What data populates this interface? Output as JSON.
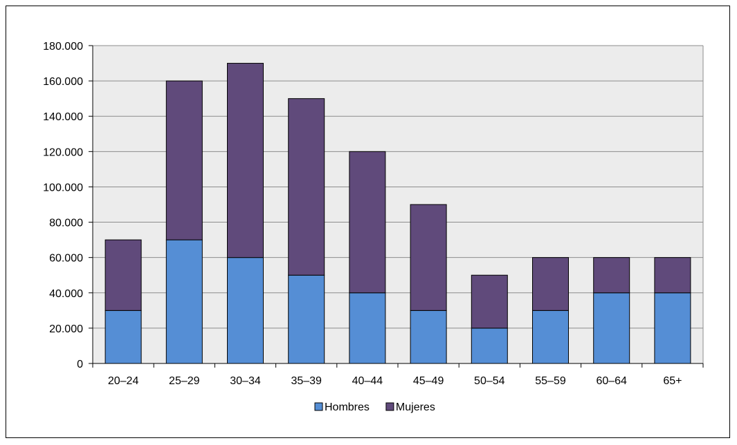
{
  "chart_data": {
    "type": "bar",
    "stacked": true,
    "categories": [
      "20–24",
      "25–29",
      "30–34",
      "35–39",
      "40–44",
      "45–49",
      "50–54",
      "55–59",
      "60–64",
      "65+"
    ],
    "series": [
      {
        "name": "Hombres",
        "color": "#558ed5",
        "values": [
          30000,
          70000,
          60000,
          50000,
          40000,
          30000,
          20000,
          30000,
          40000,
          40000
        ]
      },
      {
        "name": "Mujeres",
        "color": "#604a7b",
        "values": [
          40000,
          90000,
          110000,
          100000,
          80000,
          60000,
          30000,
          30000,
          20000,
          20000
        ]
      }
    ],
    "ylim": [
      0,
      180000
    ],
    "yticks": [
      0,
      20000,
      40000,
      60000,
      80000,
      100000,
      120000,
      140000,
      160000,
      180000
    ],
    "ytick_labels": [
      "0",
      "20.000",
      "40.000",
      "60.000",
      "80.000",
      "100.000",
      "120.000",
      "140.000",
      "160.000",
      "180.000"
    ],
    "grid": true,
    "legend_position": "bottom",
    "plot_background": "#ececec"
  }
}
